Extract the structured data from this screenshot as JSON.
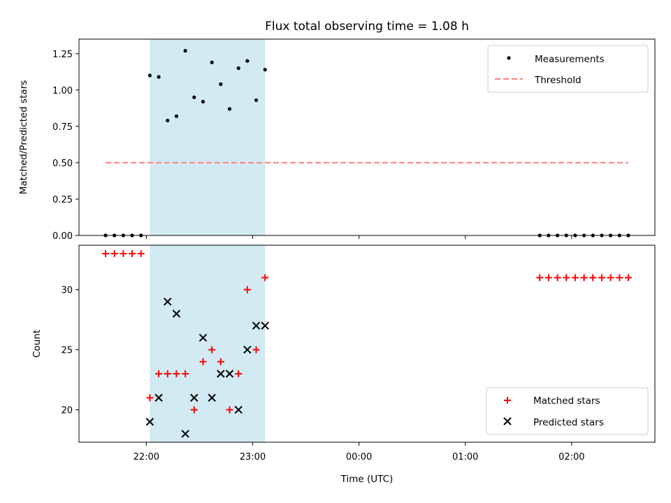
{
  "chart_data": [
    {
      "type": "scatter",
      "title": "Flux total observing time = 1.08 h",
      "xlabel": "",
      "ylabel": "Matched/Predicted stars",
      "ylim": [
        0,
        1.35
      ],
      "xlim": [
        "21:22",
        "02:47"
      ],
      "yticks": [
        0,
        0.25,
        0.5,
        0.75,
        1.0,
        1.25
      ],
      "ytick_labels": [
        "0.00",
        "0.25",
        "0.50",
        "0.75",
        "1.00",
        "1.25"
      ],
      "grid": false,
      "legend_position": "top-right",
      "shaded_interval": {
        "start": "22:02",
        "end": "23:07",
        "color": "#add8e6"
      },
      "series": [
        {
          "name": "Measurements",
          "marker": "dot",
          "color": "#000000",
          "points": [
            [
              "21:37",
              0
            ],
            [
              "21:42",
              0
            ],
            [
              "21:47",
              0
            ],
            [
              "21:52",
              0
            ],
            [
              "21:57",
              0
            ],
            [
              "22:02",
              1.1
            ],
            [
              "22:07",
              1.09
            ],
            [
              "22:12",
              0.79
            ],
            [
              "22:17",
              0.82
            ],
            [
              "22:22",
              1.27
            ],
            [
              "22:27",
              0.95
            ],
            [
              "22:32",
              0.92
            ],
            [
              "22:37",
              1.19
            ],
            [
              "22:42",
              1.04
            ],
            [
              "22:47",
              0.87
            ],
            [
              "22:52",
              1.15
            ],
            [
              "22:57",
              1.2
            ],
            [
              "23:02",
              0.93
            ],
            [
              "23:07",
              1.14
            ],
            [
              "01:42",
              0
            ],
            [
              "01:47",
              0
            ],
            [
              "01:52",
              0
            ],
            [
              "01:57",
              0
            ],
            [
              "02:02",
              0
            ],
            [
              "02:07",
              0
            ],
            [
              "02:12",
              0
            ],
            [
              "02:17",
              0
            ],
            [
              "02:22",
              0
            ],
            [
              "02:27",
              0
            ],
            [
              "02:32",
              0
            ]
          ]
        },
        {
          "name": "Threshold",
          "marker": "dashed-line",
          "color": "#ff7f7f",
          "points": [
            [
              "21:37",
              0.5
            ],
            [
              "02:32",
              0.5
            ]
          ]
        }
      ]
    },
    {
      "type": "scatter",
      "title": "",
      "xlabel": "Time (UTC)",
      "ylabel": "Count",
      "ylim": [
        17.3,
        33.7
      ],
      "xlim": [
        "21:22",
        "02:47"
      ],
      "yticks": [
        20,
        25,
        30
      ],
      "ytick_labels": [
        "20",
        "25",
        "30"
      ],
      "xticks": [
        "22:00",
        "23:00",
        "00:00",
        "01:00",
        "02:00"
      ],
      "xtick_labels": [
        "22:00",
        "23:00",
        "00:00",
        "01:00",
        "02:00"
      ],
      "grid": false,
      "legend_position": "bottom-right",
      "shaded_interval": {
        "start": "22:02",
        "end": "23:07",
        "color": "#add8e6"
      },
      "series": [
        {
          "name": "Matched stars",
          "marker": "plus",
          "color": "#ff0000",
          "points": [
            [
              "21:37",
              33
            ],
            [
              "21:42",
              33
            ],
            [
              "21:47",
              33
            ],
            [
              "21:52",
              33
            ],
            [
              "21:57",
              33
            ],
            [
              "22:02",
              21
            ],
            [
              "22:07",
              23
            ],
            [
              "22:12",
              23
            ],
            [
              "22:17",
              23
            ],
            [
              "22:22",
              23
            ],
            [
              "22:27",
              20
            ],
            [
              "22:32",
              24
            ],
            [
              "22:37",
              25
            ],
            [
              "22:42",
              24
            ],
            [
              "22:47",
              20
            ],
            [
              "22:52",
              23
            ],
            [
              "22:57",
              30
            ],
            [
              "23:02",
              25
            ],
            [
              "23:07",
              31
            ],
            [
              "01:42",
              31
            ],
            [
              "01:47",
              31
            ],
            [
              "01:52",
              31
            ],
            [
              "01:57",
              31
            ],
            [
              "02:02",
              31
            ],
            [
              "02:07",
              31
            ],
            [
              "02:12",
              31
            ],
            [
              "02:17",
              31
            ],
            [
              "02:22",
              31
            ],
            [
              "02:27",
              31
            ],
            [
              "02:32",
              31
            ]
          ]
        },
        {
          "name": "Predicted stars",
          "marker": "x",
          "color": "#000000",
          "points": [
            [
              "22:02",
              19
            ],
            [
              "22:07",
              21
            ],
            [
              "22:12",
              29
            ],
            [
              "22:17",
              28
            ],
            [
              "22:22",
              18
            ],
            [
              "22:27",
              21
            ],
            [
              "22:32",
              26
            ],
            [
              "22:37",
              21
            ],
            [
              "22:42",
              23
            ],
            [
              "22:47",
              23
            ],
            [
              "22:52",
              20
            ],
            [
              "22:57",
              25
            ],
            [
              "23:02",
              27
            ],
            [
              "23:07",
              27
            ]
          ]
        }
      ]
    }
  ]
}
